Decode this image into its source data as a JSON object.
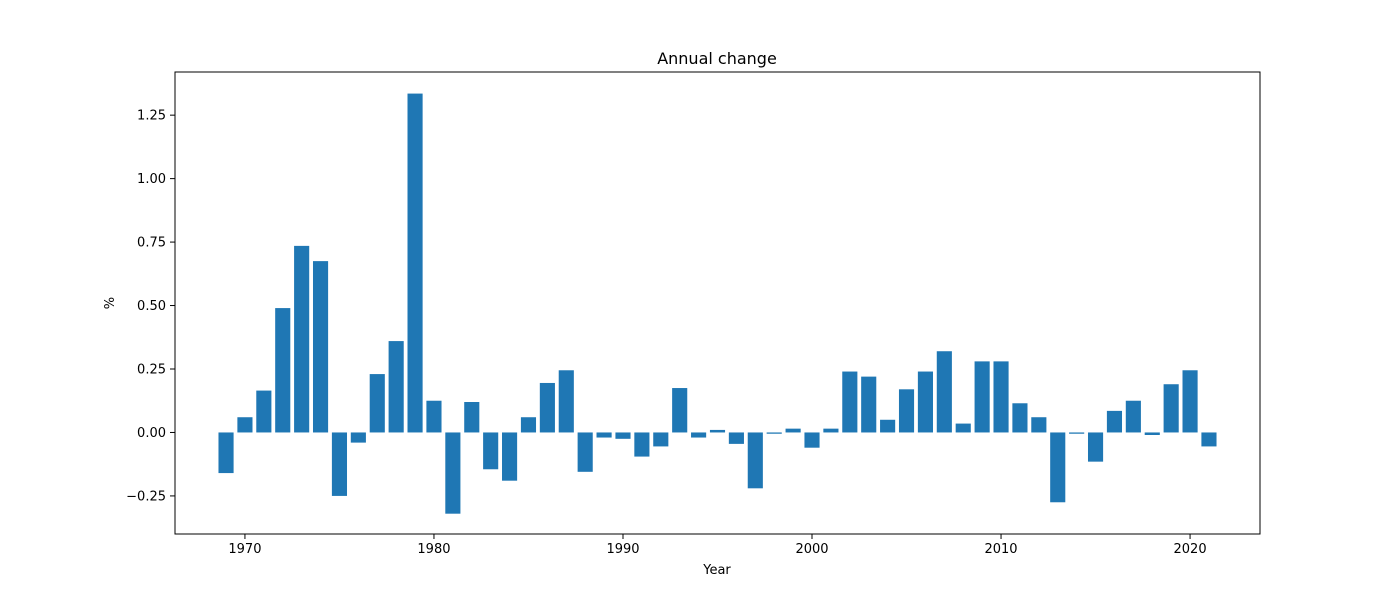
{
  "chart_data": {
    "type": "bar",
    "title": "Annual change",
    "xlabel": "Year",
    "ylabel": "%",
    "color": "#1f77b4",
    "xlim": [
      1965.7,
      1924.3
    ],
    "ylim": [
      -0.4,
      1.42
    ],
    "xticks": [
      1970,
      1980,
      1990,
      2000,
      2010,
      2020
    ],
    "yticks": [
      -0.25,
      0.0,
      0.25,
      0.5,
      0.75,
      1.0,
      1.25
    ],
    "ytick_labels": [
      "−0.25",
      "0.00",
      "0.25",
      "0.50",
      "0.75",
      "1.00",
      "1.25"
    ],
    "grid": false,
    "x": [
      1969,
      1970,
      1971,
      1972,
      1973,
      1974,
      1975,
      1976,
      1977,
      1978,
      1979,
      1980,
      1981,
      1982,
      1983,
      1984,
      1985,
      1986,
      1987,
      1988,
      1989,
      1990,
      1991,
      1992,
      1993,
      1994,
      1995,
      1996,
      1997,
      1998,
      1999,
      2000,
      2001,
      2002,
      2003,
      2004,
      2005,
      2006,
      2007,
      2008,
      2009,
      2010,
      2011,
      2012,
      2013,
      2014,
      2015,
      2016,
      2017,
      2018,
      2019,
      2020,
      2021
    ],
    "values": [
      -0.16,
      0.06,
      0.165,
      0.49,
      0.735,
      0.675,
      -0.25,
      -0.04,
      0.23,
      0.36,
      1.335,
      0.125,
      -0.32,
      0.12,
      -0.145,
      -0.19,
      0.06,
      0.195,
      0.245,
      -0.155,
      -0.02,
      -0.025,
      -0.095,
      -0.055,
      0.175,
      -0.02,
      0.01,
      -0.045,
      -0.22,
      -0.005,
      0.015,
      -0.06,
      0.015,
      0.24,
      0.22,
      0.05,
      0.17,
      0.24,
      0.32,
      0.035,
      0.28,
      0.28,
      0.115,
      0.06,
      -0.275,
      -0.005,
      -0.115,
      0.085,
      0.125,
      -0.01,
      0.19,
      0.245,
      -0.055
    ]
  }
}
